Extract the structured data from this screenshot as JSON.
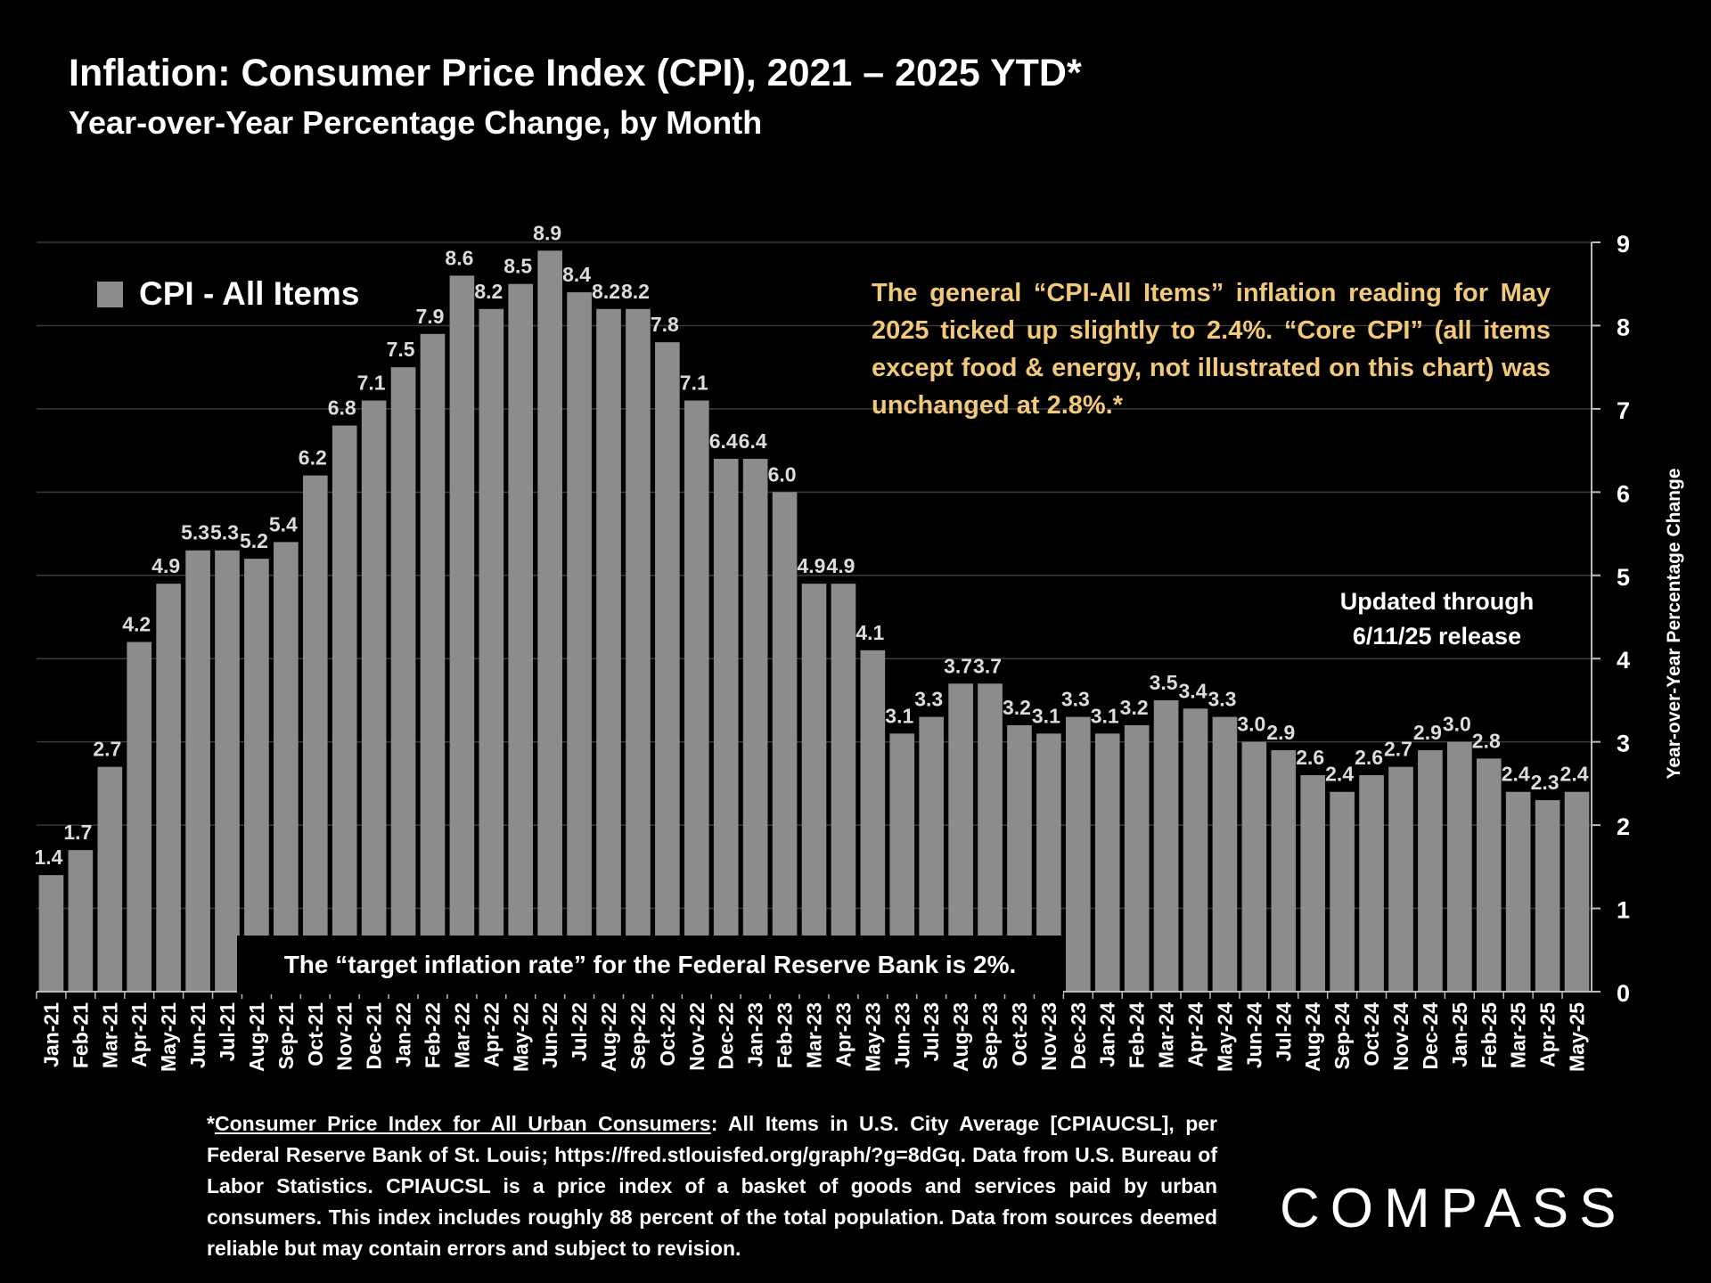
{
  "header": {
    "title": "Inflation: Consumer Price Index (CPI), 2021 – 2025 YTD*",
    "subtitle": "Year-over-Year Percentage Change, by Month"
  },
  "annotations": {
    "note": "The general “CPI-All Items” inflation reading for May 2025 ticked up slightly to 2.4%. “Core CPI” (all items except food & energy, not illustrated on this chart) was unchanged at 2.8%.*",
    "updated": "Updated through 6/11/25 release",
    "target": "The “target inflation rate” for the Federal Reserve Bank is 2%."
  },
  "footnote": {
    "prefix": "*",
    "link_text": "Consumer Price Index for All Urban Consumers",
    "body": ": All Items in U.S. City Average [CPIAUCSL], per Federal Reserve Bank of St. Louis; https://fred.stlouisfed.org/graph/?g=8dGq. Data from U.S. Bureau of Labor Statistics. CPIAUCSL is a price index of a basket of goods and services paid by urban consumers. This index includes roughly 88 percent of the total population. Data from sources deemed reliable but may contain errors and subject to revision."
  },
  "logo": "COMPASS",
  "colors": {
    "bar": "#8c8c8c",
    "background": "#000000",
    "note_text": "#f2c97a",
    "grid": "#3a3a3a"
  },
  "chart_data": {
    "type": "bar",
    "title": "Inflation: Consumer Price Index (CPI), 2021 – 2025 YTD*",
    "subtitle": "Year-over-Year Percentage Change, by Month",
    "ylabel": "Year-over-Year Percentage Change",
    "ylim": [
      0,
      9
    ],
    "yticks": [
      0,
      1,
      2,
      3,
      4,
      5,
      6,
      7,
      8,
      9
    ],
    "y_axis_side": "right",
    "grid": true,
    "legend_position": "top-left",
    "categories": [
      "Jan-21",
      "Feb-21",
      "Mar-21",
      "Apr-21",
      "May-21",
      "Jun-21",
      "Jul-21",
      "Aug-21",
      "Sep-21",
      "Oct-21",
      "Nov-21",
      "Dec-21",
      "Jan-22",
      "Feb-22",
      "Mar-22",
      "Apr-22",
      "May-22",
      "Jun-22",
      "Jul-22",
      "Aug-22",
      "Sep-22",
      "Oct-22",
      "Nov-22",
      "Dec-22",
      "Jan-23",
      "Feb-23",
      "Mar-23",
      "Apr-23",
      "May-23",
      "Jun-23",
      "Jul-23",
      "Aug-23",
      "Sep-23",
      "Oct-23",
      "Nov-23",
      "Dec-23",
      "Jan-24",
      "Feb-24",
      "Mar-24",
      "Apr-24",
      "May-24",
      "Jun-24",
      "Jul-24",
      "Aug-24",
      "Sep-24",
      "Oct-24",
      "Nov-24",
      "Dec-24",
      "Jan-25",
      "Feb-25",
      "Mar-25",
      "Apr-25",
      "May-25"
    ],
    "series": [
      {
        "name": "CPI - All Items",
        "values": [
          1.4,
          1.7,
          2.7,
          4.2,
          4.9,
          5.3,
          5.3,
          5.2,
          5.4,
          6.2,
          6.8,
          7.1,
          7.5,
          7.9,
          8.6,
          8.2,
          8.5,
          8.9,
          8.4,
          8.2,
          8.2,
          7.8,
          7.1,
          6.4,
          6.4,
          6.0,
          4.9,
          4.9,
          4.1,
          3.1,
          3.3,
          3.7,
          3.7,
          3.2,
          3.1,
          3.3,
          3.1,
          3.2,
          3.5,
          3.4,
          3.3,
          3.0,
          2.9,
          2.6,
          2.4,
          2.6,
          2.7,
          2.9,
          3.0,
          2.8,
          2.4,
          2.3,
          2.4
        ],
        "labels": [
          "1.4",
          "1.7",
          "2.7",
          "4.2",
          "4.9",
          "5.3",
          "5.3",
          "5.2",
          "5.4",
          "6.2",
          "6.8",
          "7.1",
          "7.5",
          "7.9",
          "8.6",
          "8.2",
          "8.5",
          "8.9",
          "8.4",
          "8.2",
          "8.2",
          "7.8",
          "7.1",
          "6.4",
          "6.4",
          "6.0",
          "4.9",
          "4.9",
          "4.1",
          "3.1",
          "3.3",
          "3.7",
          "3.7",
          "3.2",
          "3.1",
          "3.3",
          "3.1",
          "3.2",
          "3.5",
          "3.4",
          "3.3",
          "3.0",
          "2.9",
          "2.6",
          "2.4",
          "2.6",
          "2.7",
          "2.9",
          "3.0",
          "2.8",
          "2.4",
          "2.3",
          "2.4"
        ]
      }
    ]
  }
}
